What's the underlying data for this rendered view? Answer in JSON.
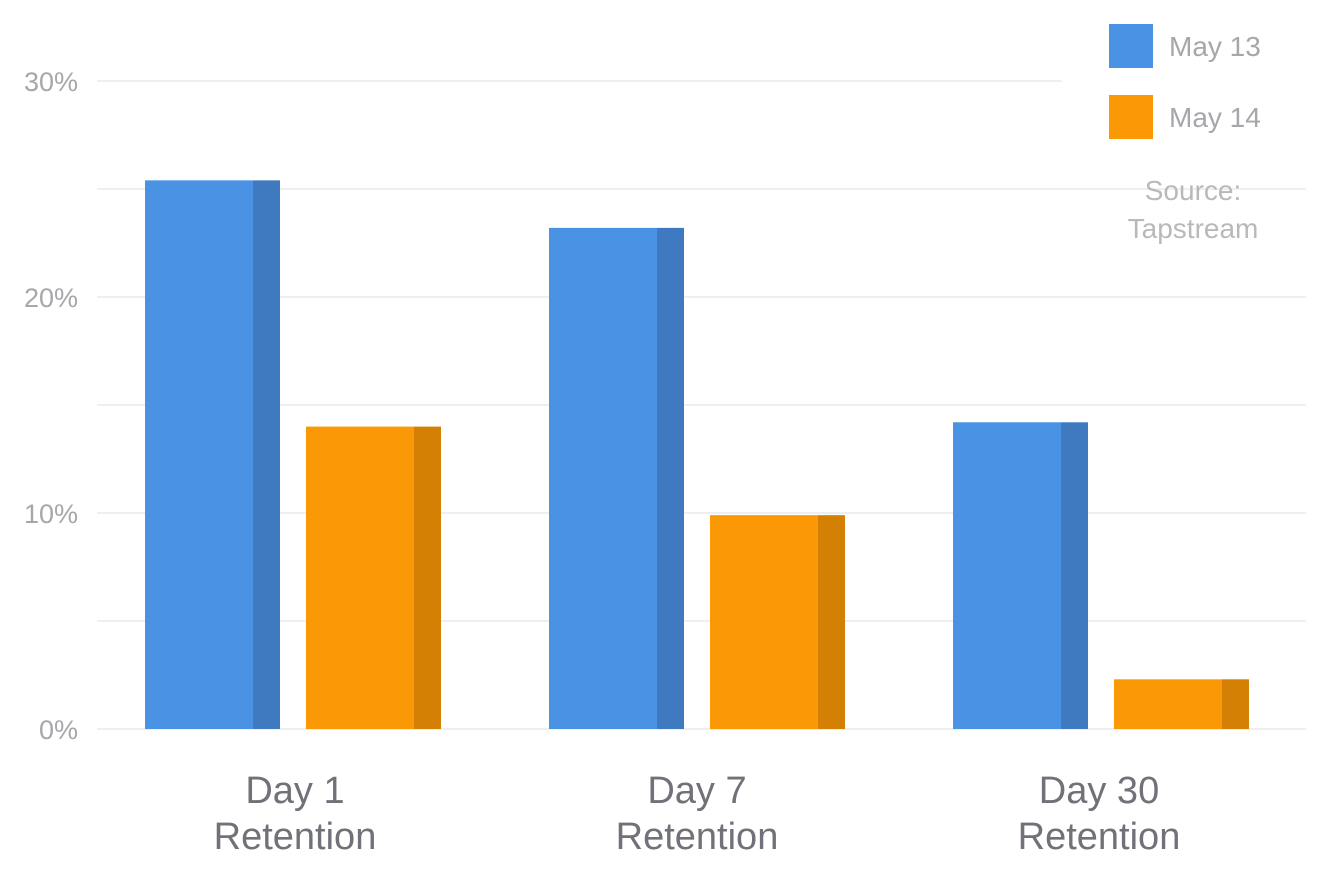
{
  "chart_data": {
    "type": "bar",
    "categories": [
      [
        "Day 1",
        "Retention"
      ],
      [
        "Day 7",
        "Retention"
      ],
      [
        "Day 30",
        "Retention"
      ]
    ],
    "series": [
      {
        "name": "May 13",
        "values": [
          25.4,
          23.2,
          14.2
        ],
        "color": "#4a92e3",
        "shade": "#3f79c0"
      },
      {
        "name": "May 14",
        "values": [
          14.0,
          9.9,
          2.3
        ],
        "color": "#fa9806",
        "shade": "#d38004"
      }
    ],
    "ylim": [
      0,
      30
    ],
    "yticks": [
      "0%",
      "10%",
      "20%",
      "30%"
    ],
    "grid": true,
    "legend": "top-right",
    "source": [
      "Source:",
      "Tapstream"
    ]
  }
}
